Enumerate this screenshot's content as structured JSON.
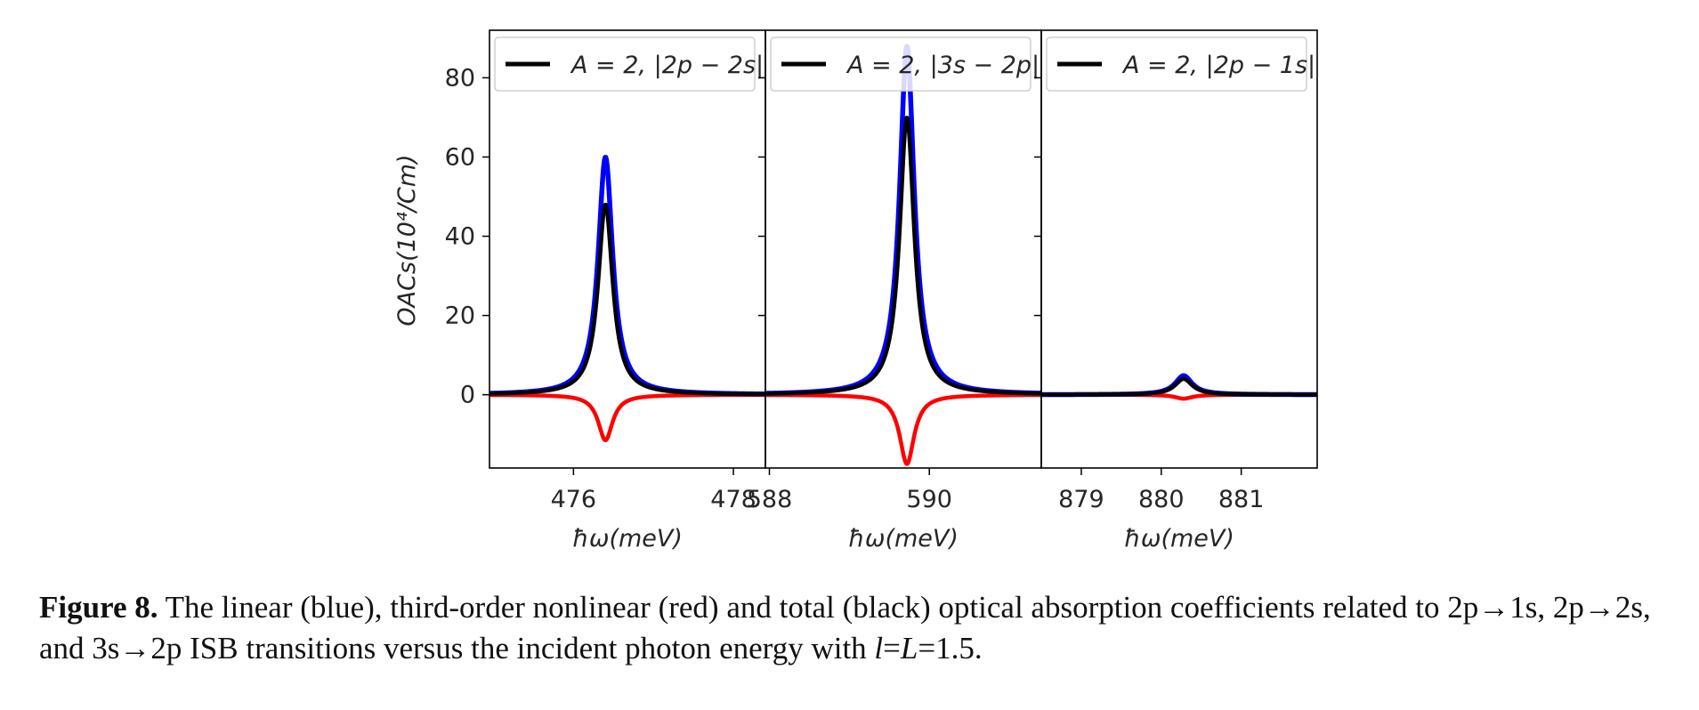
{
  "caption": {
    "label": "Figure 8.",
    "text_part1": "The linear (blue), third-order nonlinear (red) and total (black) optical absorption coefficients related to 2p→1s, 2p→2s, and 3s→2p ISB transitions versus the incident photon energy with ",
    "var_l": "l",
    "eq1": "=",
    "var_L": "L",
    "text_part2": "=1.5."
  },
  "colors": {
    "linear": "#0000ff",
    "nonlinear": "#ff0000",
    "total": "#000000"
  },
  "chart_data": [
    {
      "type": "line",
      "title": "",
      "xlabel": "ħω(meV)",
      "ylabel": "OACs(10⁴/Cm)",
      "xlim": [
        474.95,
        478.4
      ],
      "ylim": [
        -18.5,
        92
      ],
      "xticks": [
        476,
        478
      ],
      "yticks": [
        0,
        20,
        40,
        60,
        80
      ],
      "legend": {
        "label": "A = 2, |2p − 2s|",
        "position": "top-left"
      },
      "peak": {
        "x": 476.4,
        "hwhm": 0.11
      },
      "series": [
        {
          "name": "linear",
          "color": "blue",
          "peak_value": 60
        },
        {
          "name": "nonlinear",
          "color": "red",
          "peak_value": -11.5
        },
        {
          "name": "total",
          "color": "black",
          "peak_value": 48
        }
      ]
    },
    {
      "type": "line",
      "title": "",
      "xlabel": "ħω(meV)",
      "ylabel": "",
      "xlim": [
        587.95,
        591.4
      ],
      "ylim": [
        -18.5,
        92
      ],
      "xticks": [
        588,
        590
      ],
      "yticks": [
        0,
        20,
        40,
        60,
        80
      ],
      "legend": {
        "label": "A = 2, |3s − 2p|",
        "position": "top-left"
      },
      "peak": {
        "x": 589.72,
        "hwhm": 0.11
      },
      "series": [
        {
          "name": "linear",
          "color": "blue",
          "peak_value": 88
        },
        {
          "name": "nonlinear",
          "color": "red",
          "peak_value": -17.5
        },
        {
          "name": "total",
          "color": "black",
          "peak_value": 70
        }
      ]
    },
    {
      "type": "line",
      "title": "",
      "xlabel": "ħω(meV)",
      "ylabel": "",
      "xlim": [
        878.5,
        881.95
      ],
      "ylim": [
        -18.5,
        92
      ],
      "xticks": [
        879,
        880,
        881
      ],
      "yticks": [
        0,
        20,
        40,
        60,
        80
      ],
      "legend": {
        "label": "A = 2, |2p − 1s|",
        "position": "top-left"
      },
      "peak": {
        "x": 880.28,
        "hwhm": 0.13
      },
      "series": [
        {
          "name": "linear",
          "color": "blue",
          "peak_value": 4.8
        },
        {
          "name": "nonlinear",
          "color": "red",
          "peak_value": -1.0
        },
        {
          "name": "total",
          "color": "black",
          "peak_value": 4.0
        }
      ]
    }
  ]
}
